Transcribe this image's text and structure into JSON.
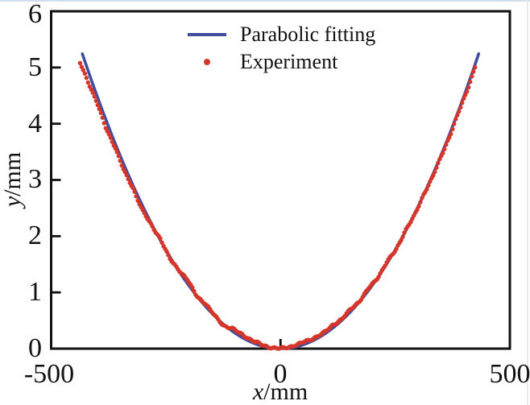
{
  "figure": {
    "background": "#ffffff",
    "border_rule_color": "#cfe0ec"
  },
  "chart_data": {
    "type": "line+scatter",
    "title": "",
    "xlabel_var": "x",
    "xlabel_unit": "/mm",
    "ylabel_var": "y",
    "ylabel_unit": "/mm",
    "xlim": [
      -500,
      500
    ],
    "ylim": [
      0,
      6
    ],
    "x_ticks": [
      "-500",
      "0",
      "500"
    ],
    "x_tick_values": [
      -500,
      0,
      500
    ],
    "y_ticks": [
      "0",
      "1",
      "2",
      "3",
      "4",
      "5",
      "6"
    ],
    "y_tick_values": [
      0,
      1,
      2,
      3,
      4,
      5,
      6
    ],
    "grid": false,
    "axis_color": "#111111",
    "legend_position": "inside-top-center",
    "series": [
      {
        "name": "Parabolic fitting",
        "type": "line",
        "color": "#3f4d9f",
        "stroke_width": 3.6,
        "model": "y = a*x^2",
        "a": 2.81e-05,
        "x_min": -432,
        "x_max": 432
      },
      {
        "name": "Experiment",
        "type": "scatter",
        "color": "#d6352a",
        "dot_radius": 2.7,
        "x_min": -437,
        "x_max": 427,
        "x_step": 3.5,
        "base_model": "y = a*x^2 + offset(x) + ripple(x)",
        "a": 2.81e-05,
        "offset_x_min": -440,
        "offset_x_max": 430,
        "offsets_mm": [
          -0.3,
          -0.2,
          -0.12,
          -0.15,
          -0.07,
          -0.11,
          -0.05,
          -0.09,
          -0.03,
          0.03,
          -0.04,
          0.02,
          0.07,
          0.0,
          0.05,
          0.01,
          -0.02,
          0.05,
          0.06,
          0.04,
          0.03,
          0.01,
          0.0,
          0.02,
          0.03,
          0.05,
          0.04,
          0.03,
          0.06,
          0.02,
          0.05,
          0.01,
          0.04,
          0.0,
          0.03,
          -0.02,
          0.02,
          -0.03,
          0.01,
          -0.04,
          -0.02,
          -0.05,
          -0.03,
          -0.06,
          -0.04
        ],
        "ripple_amp1": 0.012,
        "ripple_freq1": 0.35,
        "ripple_amp2": 0.008,
        "ripple_freq2": 0.13
      }
    ]
  }
}
